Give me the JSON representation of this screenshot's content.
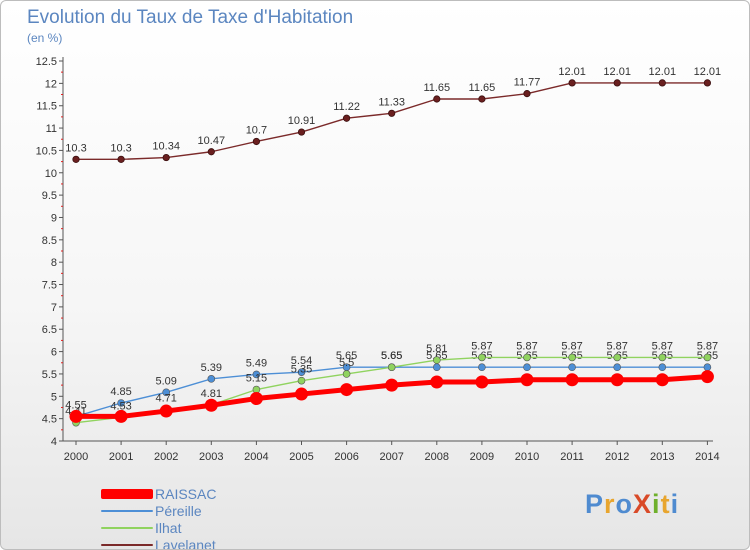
{
  "header": {
    "title": "Evolution du Taux de Taxe d'Habitation",
    "subtitle": "(en %)"
  },
  "logo": {
    "text": "ProXiti",
    "colors": [
      "#4f8bd0",
      "#e8a52e",
      "#4f8bd0",
      "#d94a28",
      "#6fb02c",
      "#e8a52e",
      "#4f8bd0"
    ]
  },
  "chart_data": {
    "type": "line",
    "x": [
      "2000",
      "2001",
      "2002",
      "2003",
      "2004",
      "2005",
      "2006",
      "2007",
      "2008",
      "2009",
      "2010",
      "2011",
      "2012",
      "2013",
      "2014"
    ],
    "y_ticks": [
      "4",
      "4.5",
      "5",
      "5.5",
      "6",
      "6.5",
      "7",
      "7.5",
      "8",
      "8.5",
      "9",
      "9.5",
      "10",
      "10.5",
      "11",
      "11.5",
      "12",
      "12.5"
    ],
    "ylim": [
      4,
      12.5
    ],
    "grid": false,
    "legend_position": "bottom-left",
    "series": [
      {
        "name": "RAISSAC",
        "color": "#ff0000",
        "values": [
          4.55,
          4.55,
          4.67,
          4.8,
          4.95,
          5.05,
          5.15,
          5.25,
          5.32,
          5.32,
          5.37,
          5.37,
          5.37,
          5.37,
          5.44
        ],
        "labels": [
          "",
          "",
          "",
          "",
          "",
          "",
          "",
          "",
          "",
          "",
          "",
          "",
          "",
          "",
          ""
        ]
      },
      {
        "name": "Péreille",
        "color": "#4d8fd6",
        "values": [
          4.55,
          4.85,
          5.09,
          5.39,
          5.49,
          5.54,
          5.65,
          5.65,
          5.65,
          5.65,
          5.65,
          5.65,
          5.65,
          5.65,
          5.65
        ],
        "labels": [
          "4.55",
          "4.85",
          "5.09",
          "5.39",
          "5.49",
          "5.54",
          "5.65",
          "5.65",
          "5.65",
          "5.65",
          "5.65",
          "5.65",
          "5.65",
          "5.65",
          "5.65"
        ]
      },
      {
        "name": "Ilhat",
        "color": "#90d35f",
        "values": [
          4.41,
          4.53,
          4.71,
          4.81,
          5.15,
          5.35,
          5.5,
          5.65,
          5.81,
          5.87,
          5.87,
          5.87,
          5.87,
          5.87,
          5.87
        ],
        "labels": [
          "4.41",
          "4.53",
          "4.71",
          "4.81",
          "5.15",
          "5.35",
          "5.5",
          "5.65",
          "5.81",
          "5.87",
          "5.87",
          "5.87",
          "5.87",
          "5.87",
          "5.87"
        ]
      },
      {
        "name": "Lavelanet",
        "color": "#7b2a2a",
        "values": [
          10.3,
          10.3,
          10.34,
          10.47,
          10.7,
          10.91,
          11.22,
          11.33,
          11.65,
          11.65,
          11.77,
          12.01,
          12.01,
          12.01,
          12.01
        ],
        "labels": [
          "10.3",
          "10.3",
          "10.34",
          "10.47",
          "10.7",
          "10.91",
          "11.22",
          "11.33",
          "11.65",
          "11.65",
          "11.77",
          "12.01",
          "12.01",
          "12.01",
          "12.01"
        ]
      }
    ]
  }
}
